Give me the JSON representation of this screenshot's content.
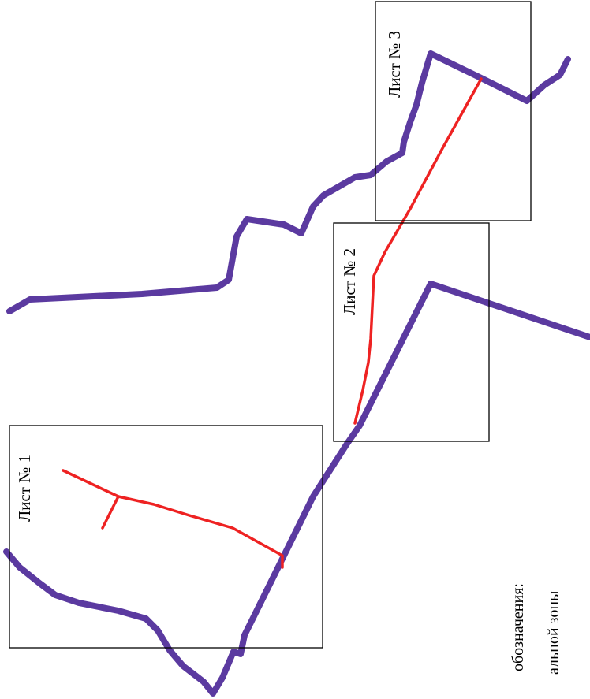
{
  "colors": {
    "boundary": "#5b3aa0",
    "route": "#ee2222",
    "frame": "#000000"
  },
  "sheets": [
    {
      "label": "Лист № 1"
    },
    {
      "label": "Лист № 2"
    },
    {
      "label": "Лист № 3"
    }
  ],
  "legend": {
    "title": "обозначения:",
    "item": "альной зоны"
  }
}
